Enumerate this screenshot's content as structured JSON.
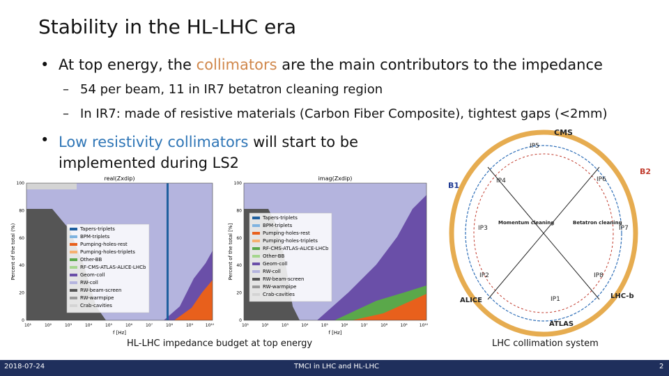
{
  "slide": {
    "title": "Stability in the HL-LHC era",
    "bullets": [
      {
        "parts": [
          "At top energy, the ",
          "collimators",
          " are the main contributors to the impedance"
        ],
        "subbullets": [
          "54 per beam, 11 in IR7 betatron cleaning region",
          "In IR7: made of resistive materials (Carbon Fiber Composite), tightest gaps (<2mm)"
        ]
      },
      {
        "parts": [
          "Low resistivity collimators",
          " will start to be implemented during LS2"
        ]
      }
    ],
    "plots": [
      {
        "title": "real(Zxdip)",
        "ylabel": "Percent of the total (%)",
        "xlabel": "f [Hz]",
        "yticks": [
          "0",
          "20",
          "40",
          "60",
          "80",
          "100"
        ],
        "xticks": [
          "10¹",
          "10²",
          "10³",
          "10⁴",
          "10⁵",
          "10⁶",
          "10⁷",
          "10⁸",
          "10⁹",
          "10¹⁰"
        ],
        "legend": [
          {
            "name": "Tapers-triplets",
            "color": "#1f5f9e"
          },
          {
            "name": "BPM-triplets",
            "color": "#7fb3e0"
          },
          {
            "name": "Pumping-holes-rest",
            "color": "#e8601c"
          },
          {
            "name": "Pumping-holes-triplets",
            "color": "#f5b070"
          },
          {
            "name": "Other-BB",
            "color": "#5aa84a"
          },
          {
            "name": "RF-CMS-ATLAS-ALICE-LHCb",
            "color": "#a5d68e"
          },
          {
            "name": "Geom-coll",
            "color": "#6a4fa8"
          },
          {
            "name": "RW-coll",
            "color": "#b4b4de"
          },
          {
            "name": "RW-beam-screen",
            "color": "#555555"
          },
          {
            "name": "RW-warmpipe",
            "color": "#999999"
          },
          {
            "name": "Crab-cavities",
            "color": "#d4d4d4"
          }
        ]
      },
      {
        "title": "imag(Zxdip)",
        "ylabel": "Percent of the total [%]",
        "xlabel": "f [Hz]",
        "yticks": [
          "0",
          "20",
          "40",
          "60",
          "80",
          "100"
        ],
        "xticks": [
          "10¹",
          "10²",
          "10³",
          "10⁴",
          "10⁵",
          "10⁶",
          "10⁷",
          "10⁸",
          "10⁹",
          "10¹⁰"
        ],
        "legend": [
          {
            "name": "Tapers-triplets",
            "color": "#1f5f9e"
          },
          {
            "name": "BPM-triplets",
            "color": "#7fb3e0"
          },
          {
            "name": "Pumping-holes-rest",
            "color": "#e8601c"
          },
          {
            "name": "Pumping-holes-triplets",
            "color": "#f5b070"
          },
          {
            "name": "RF-CMS-ATLAS-ALICE-LHCb",
            "color": "#5aa84a"
          },
          {
            "name": "Other-BB",
            "color": "#a5d68e"
          },
          {
            "name": "Geom-coll",
            "color": "#6a4fa8"
          },
          {
            "name": "RW-coll",
            "color": "#b4b4de"
          },
          {
            "name": "RW-beam-screen",
            "color": "#555555"
          },
          {
            "name": "RW-warmpipe",
            "color": "#999999"
          },
          {
            "name": "Crab-cavities",
            "color": "#d4d4d4"
          }
        ]
      }
    ],
    "ring": {
      "labels": [
        "CMS",
        "ATLAS",
        "ALICE",
        "LHC-b",
        "B1",
        "B2",
        "IP1",
        "IP2",
        "IP3",
        "IP4",
        "IP5",
        "IP6",
        "IP7",
        "IP8",
        "Momentum cleaning",
        "Betatron cleaning"
      ]
    },
    "captions": [
      "HL-LHC impedance budget at top energy",
      "LHC collimation system"
    ],
    "footer": {
      "date": "2018-07-24",
      "center": "TMCI in LHC and HL-LHC",
      "page": "2"
    }
  }
}
